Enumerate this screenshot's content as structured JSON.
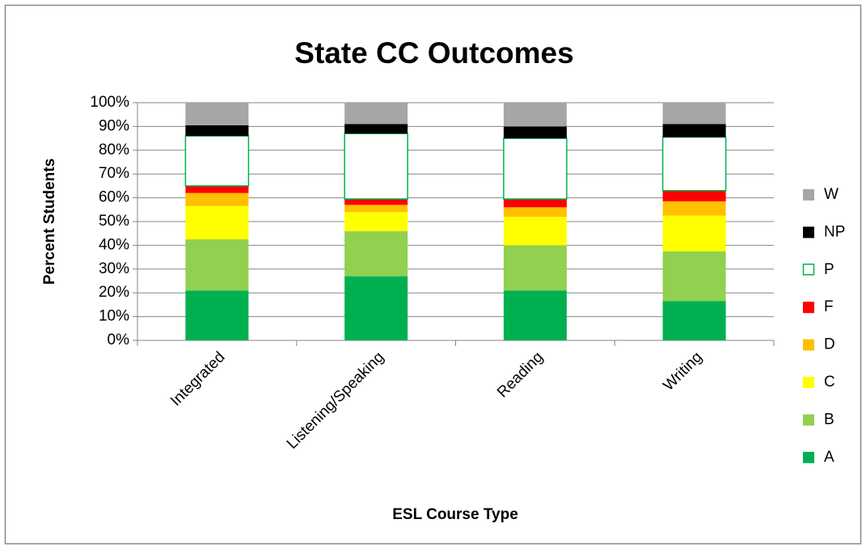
{
  "chart_data": {
    "type": "stacked_bar",
    "title": "State CC Outcomes",
    "x_label": "ESL Course Type",
    "y_label": "Percent Students",
    "categories": [
      "Integrated",
      "Listening/Speaking",
      "Reading",
      "Writing"
    ],
    "series": [
      {
        "name": "A",
        "color": "#00b050",
        "values": [
          21,
          27,
          21,
          16.5
        ]
      },
      {
        "name": "B",
        "color": "#92d050",
        "values": [
          21.5,
          19,
          19,
          21
        ]
      },
      {
        "name": "C",
        "color": "#ffff00",
        "values": [
          14,
          8,
          12,
          15
        ]
      },
      {
        "name": "D",
        "color": "#ffc000",
        "values": [
          5.5,
          3,
          4,
          6
        ]
      },
      {
        "name": "F",
        "color": "#ff0000",
        "values": [
          3,
          2.5,
          3.5,
          4.5
        ]
      },
      {
        "name": "P",
        "color": "#ffffff",
        "edge_color": "#00b050",
        "values": [
          21,
          27.5,
          25.5,
          22.5
        ]
      },
      {
        "name": "NP",
        "color": "#000000",
        "values": [
          4.5,
          4,
          5,
          5.5
        ]
      },
      {
        "name": "W",
        "color": "#a6a6a6",
        "values": [
          9.5,
          9,
          10,
          9
        ]
      }
    ],
    "ylim": [
      0,
      100
    ],
    "yticks": [
      {
        "value": 0,
        "label": "0%"
      },
      {
        "value": 10,
        "label": "10%"
      },
      {
        "value": 20,
        "label": "20%"
      },
      {
        "value": 30,
        "label": "30%"
      },
      {
        "value": 40,
        "label": "40%"
      },
      {
        "value": 50,
        "label": "50%"
      },
      {
        "value": 60,
        "label": "60%"
      },
      {
        "value": 70,
        "label": "70%"
      },
      {
        "value": 80,
        "label": "80%"
      },
      {
        "value": 90,
        "label": "90%"
      },
      {
        "value": 100,
        "label": "100%"
      }
    ],
    "grid": true,
    "legend": "right"
  }
}
